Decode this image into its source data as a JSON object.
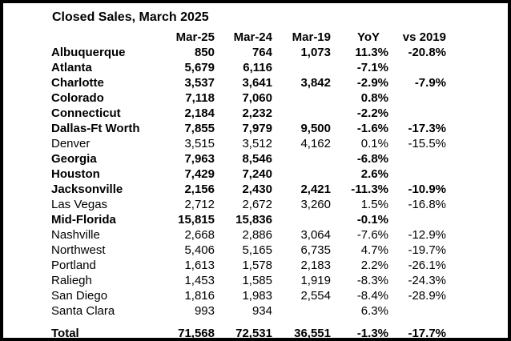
{
  "chart_data": {
    "type": "table",
    "title": "Closed Sales, March 2025",
    "columns": [
      "",
      "Mar-25",
      "Mar-24",
      "Mar-19",
      "YoY",
      "vs 2019"
    ],
    "rows": [
      {
        "label": "Albuquerque",
        "bold": true,
        "values": [
          "850",
          "764",
          "1,073",
          "11.3%",
          "-20.8%"
        ]
      },
      {
        "label": "Atlanta",
        "bold": true,
        "values": [
          "5,679",
          "6,116",
          "",
          "-7.1%",
          ""
        ]
      },
      {
        "label": "Charlotte",
        "bold": true,
        "values": [
          "3,537",
          "3,641",
          "3,842",
          "-2.9%",
          "-7.9%"
        ]
      },
      {
        "label": "Colorado",
        "bold": true,
        "values": [
          "7,118",
          "7,060",
          "",
          "0.8%",
          ""
        ]
      },
      {
        "label": "Connecticut",
        "bold": true,
        "values": [
          "2,184",
          "2,232",
          "",
          "-2.2%",
          ""
        ]
      },
      {
        "label": "Dallas-Ft Worth",
        "bold": true,
        "values": [
          "7,855",
          "7,979",
          "9,500",
          "-1.6%",
          "-17.3%"
        ]
      },
      {
        "label": "Denver",
        "bold": false,
        "values": [
          "3,515",
          "3,512",
          "4,162",
          "0.1%",
          "-15.5%"
        ]
      },
      {
        "label": "Georgia",
        "bold": true,
        "values": [
          "7,963",
          "8,546",
          "",
          "-6.8%",
          ""
        ]
      },
      {
        "label": "Houston",
        "bold": true,
        "values": [
          "7,429",
          "7,240",
          "",
          "2.6%",
          ""
        ]
      },
      {
        "label": "Jacksonville",
        "bold": true,
        "values": [
          "2,156",
          "2,430",
          "2,421",
          "-11.3%",
          "-10.9%"
        ]
      },
      {
        "label": "Las Vegas",
        "bold": false,
        "values": [
          "2,712",
          "2,672",
          "3,260",
          "1.5%",
          "-16.8%"
        ]
      },
      {
        "label": "Mid-Florida",
        "bold": true,
        "values": [
          "15,815",
          "15,836",
          "",
          "-0.1%",
          ""
        ]
      },
      {
        "label": "Nashville",
        "bold": false,
        "values": [
          "2,668",
          "2,886",
          "3,064",
          "-7.6%",
          "-12.9%"
        ]
      },
      {
        "label": "Northwest",
        "bold": false,
        "values": [
          "5,406",
          "5,165",
          "6,735",
          "4.7%",
          "-19.7%"
        ]
      },
      {
        "label": "Portland",
        "bold": false,
        "values": [
          "1,613",
          "1,578",
          "2,183",
          "2.2%",
          "-26.1%"
        ]
      },
      {
        "label": "Raliegh",
        "bold": false,
        "values": [
          "1,453",
          "1,585",
          "1,919",
          "-8.3%",
          "-24.3%"
        ]
      },
      {
        "label": "San Diego",
        "bold": false,
        "values": [
          "1,816",
          "1,983",
          "2,554",
          "-8.4%",
          "-28.9%"
        ]
      },
      {
        "label": "Santa Clara",
        "bold": false,
        "values": [
          "993",
          "934",
          "",
          "6.3%",
          ""
        ]
      },
      {
        "label": "Total",
        "bold": true,
        "total": true,
        "values": [
          "71,568",
          "72,531",
          "36,551",
          "-1.3%",
          "-17.7%"
        ]
      }
    ]
  }
}
